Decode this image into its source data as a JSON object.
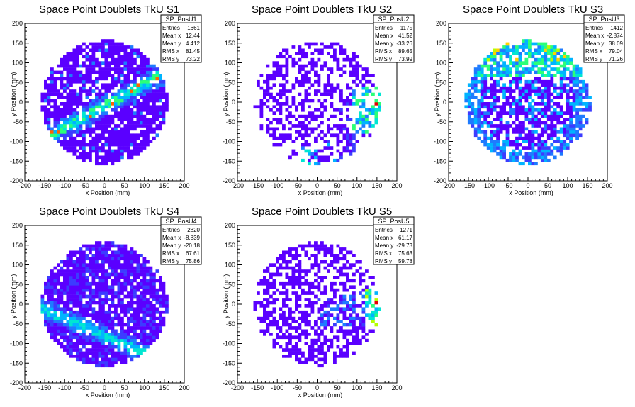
{
  "chart_data": [
    {
      "type": "heatmap",
      "title": "Space Point Doublets TkU S1",
      "xlabel": "x Position (mm)",
      "ylabel": "y Position (mm)",
      "xlim": [
        -200,
        200
      ],
      "ylim": [
        -200,
        200
      ],
      "xticks": [
        "-200",
        "-150",
        "-100",
        "-50",
        "0",
        "50",
        "100",
        "150",
        "200"
      ],
      "yticks": [
        "-200",
        "-150",
        "-100",
        "-50",
        "0",
        "50",
        "100",
        "150",
        "200"
      ],
      "stats": {
        "name": "SP_PosU1",
        "rows": [
          {
            "label": "Entries",
            "value": "1661"
          },
          {
            "label": "Mean x",
            "value": "12.44"
          },
          {
            "label": "Mean y",
            "value": "4.412"
          },
          {
            "label": "RMS x",
            "value": "81.45"
          },
          {
            "label": "RMS y",
            "value": "73.22"
          }
        ]
      },
      "pattern": "diagonal-band",
      "band_slope": 0.55,
      "band_offset": -10,
      "occupancy": 0.82
    },
    {
      "type": "heatmap",
      "title": "Space Point Doublets TkU S2",
      "xlabel": "x Position (mm)",
      "ylabel": "y Position (mm)",
      "xlim": [
        -200,
        200
      ],
      "ylim": [
        -200,
        200
      ],
      "xticks": [
        "-200",
        "-150",
        "-100",
        "-50",
        "0",
        "50",
        "100",
        "150",
        "200"
      ],
      "yticks": [
        "-200",
        "-150",
        "-100",
        "-50",
        "0",
        "50",
        "100",
        "150",
        "200"
      ],
      "stats": {
        "name": "SP_PosU2",
        "rows": [
          {
            "label": "Entries",
            "value": "1175"
          },
          {
            "label": "Mean x",
            "value": "41.52"
          },
          {
            "label": "Mean y",
            "value": "-33.26"
          },
          {
            "label": "RMS x",
            "value": "89.65"
          },
          {
            "label": "RMS y",
            "value": "73.99"
          }
        ]
      },
      "pattern": "lower-right",
      "occupancy": 0.45
    },
    {
      "type": "heatmap",
      "title": "Space Point Doublets TkU S3",
      "xlabel": "x Position (mm)",
      "ylabel": "y Position (mm)",
      "xlim": [
        -200,
        200
      ],
      "ylim": [
        -200,
        200
      ],
      "xticks": [
        "-200",
        "-150",
        "-100",
        "-50",
        "0",
        "50",
        "100",
        "150",
        "200"
      ],
      "yticks": [
        "-200",
        "-150",
        "-100",
        "-50",
        "0",
        "50",
        "100",
        "150",
        "200"
      ],
      "stats": {
        "name": "SP_PosU3",
        "rows": [
          {
            "label": "Entries",
            "value": "1412"
          },
          {
            "label": "Mean x",
            "value": "-2.874"
          },
          {
            "label": "Mean y",
            "value": "38.09"
          },
          {
            "label": "RMS x",
            "value": "79.04"
          },
          {
            "label": "RMS y",
            "value": "71.26"
          }
        ]
      },
      "pattern": "upper-ring",
      "occupancy": 0.7
    },
    {
      "type": "heatmap",
      "title": "Space Point Doublets TkU S4",
      "xlabel": "x Position (mm)",
      "ylabel": "y Position (mm)",
      "xlim": [
        -200,
        200
      ],
      "ylim": [
        -200,
        200
      ],
      "xticks": [
        "-200",
        "-150",
        "-100",
        "-50",
        "0",
        "50",
        "100",
        "150",
        "200"
      ],
      "yticks": [
        "-200",
        "-150",
        "-100",
        "-50",
        "0",
        "50",
        "100",
        "150",
        "200"
      ],
      "stats": {
        "name": "SP_PosU4",
        "rows": [
          {
            "label": "Entries",
            "value": "2820"
          },
          {
            "label": "Mean x",
            "value": "-8.839"
          },
          {
            "label": "Mean y",
            "value": "-20.18"
          },
          {
            "label": "RMS x",
            "value": "67.61"
          },
          {
            "label": "RMS y",
            "value": "75.86"
          }
        ]
      },
      "pattern": "dense-diagonal",
      "band_slope": -0.45,
      "band_offset": -80,
      "occupancy": 0.85
    },
    {
      "type": "heatmap",
      "title": "Space Point Doublets TkU S5",
      "xlabel": "x Position (mm)",
      "ylabel": "y Position (mm)",
      "xlim": [
        -200,
        200
      ],
      "ylim": [
        -200,
        200
      ],
      "xticks": [
        "-200",
        "-150",
        "-100",
        "-50",
        "0",
        "50",
        "100",
        "150",
        "200"
      ],
      "yticks": [
        "-200",
        "-150",
        "-100",
        "-50",
        "0",
        "50",
        "100",
        "150",
        "200"
      ],
      "stats": {
        "name": "SP_PosU5",
        "rows": [
          {
            "label": "Entries",
            "value": "1271"
          },
          {
            "label": "Mean x",
            "value": "61.17"
          },
          {
            "label": "Mean y",
            "value": "-29.73"
          },
          {
            "label": "RMS x",
            "value": "75.63"
          },
          {
            "label": "RMS y",
            "value": "59.78"
          }
        ]
      },
      "pattern": "right-band",
      "occupancy": 0.5
    }
  ],
  "palette": [
    "#5a00ff",
    "#3c3cff",
    "#1e7bff",
    "#00b4ff",
    "#00e6d2",
    "#2cff78",
    "#b4ff00",
    "#ffd200",
    "#ff6400",
    "#e60000"
  ]
}
